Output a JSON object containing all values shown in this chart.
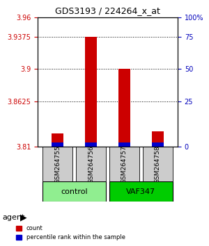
{
  "title": "GDS3193 / 224264_x_at",
  "samples": [
    "GSM264755",
    "GSM264756",
    "GSM264757",
    "GSM264758"
  ],
  "groups": [
    "control",
    "control",
    "VAF347",
    "VAF347"
  ],
  "group_colors": {
    "control": "#90EE90",
    "VAF347": "#00CC00"
  },
  "red_values": [
    3.826,
    3.9375,
    3.9,
    3.828
  ],
  "blue_values": [
    3.812,
    3.812,
    3.812,
    3.812
  ],
  "ymin": 3.81,
  "ymax": 3.96,
  "yticks_left": [
    3.96,
    3.9375,
    3.9,
    3.8625,
    3.81
  ],
  "yticks_right": [
    100,
    75,
    50,
    25,
    0
  ],
  "yticks_right_pos": [
    3.96,
    3.9375,
    3.9,
    3.8625,
    3.81
  ],
  "bar_width": 0.4,
  "red_color": "#CC0000",
  "blue_color": "#0000CC",
  "left_axis_color": "#CC0000",
  "right_axis_color": "#0000BB",
  "legend_red": "count",
  "legend_blue": "percentile rank within the sample",
  "sample_box_color": "#CCCCCC",
  "dotted_yticks": [
    3.9375,
    3.9,
    3.8625
  ],
  "bar_bottom": 3.81
}
